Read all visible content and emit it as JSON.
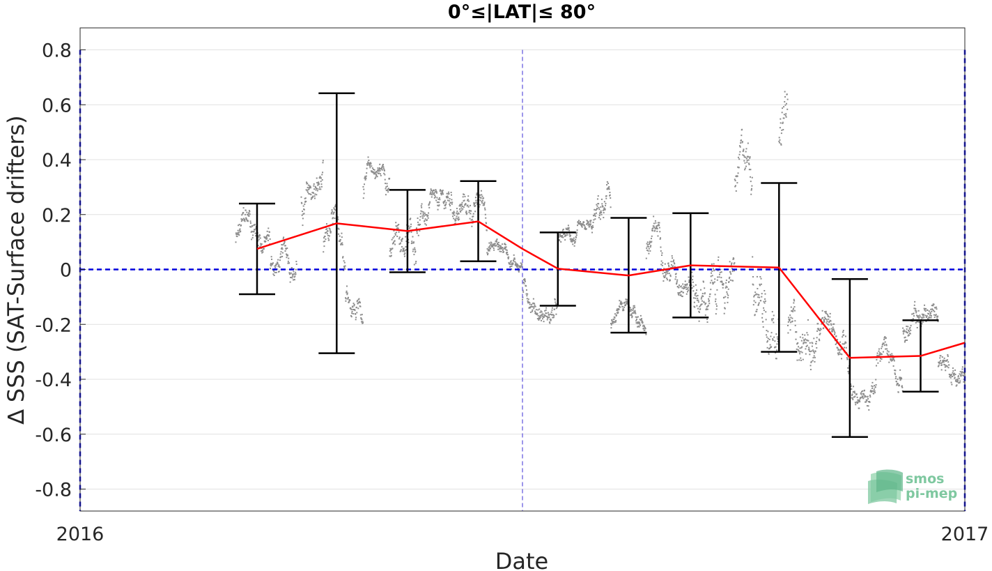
{
  "chart_data": {
    "type": "line",
    "title": "0°≤|LAT|≤ 80°",
    "xlabel": "Date",
    "ylabel": "∆ SSS (SAT-Surface drifters)",
    "x_tick_labels": [
      "2016",
      "2017"
    ],
    "xlim": [
      2016.0,
      2017.0
    ],
    "ylim": [
      -0.88,
      0.88
    ],
    "y_ticks": [
      -0.8,
      -0.6,
      -0.4,
      -0.2,
      0,
      0.2,
      0.4,
      0.6,
      0.8
    ],
    "y_tick_labels": [
      "-0.8",
      "-0.6",
      "-0.4",
      "-0.2",
      "0",
      "0.2",
      "0.4",
      "0.6",
      "0.8"
    ],
    "grid": true,
    "reference_line_y": 0,
    "vertical_marker_x": 2016.5,
    "series": [
      {
        "color": "#ff0000",
        "x": [
          2016.2,
          2016.29,
          2016.37,
          2016.45,
          2016.5,
          2016.54,
          2016.62,
          2016.69,
          2016.79,
          2016.87,
          2016.95,
          2017.0
        ],
        "y": [
          0.075,
          0.168,
          0.14,
          0.175,
          0.075,
          0.003,
          -0.022,
          0.015,
          0.007,
          -0.322,
          -0.315,
          -0.267
        ]
      }
    ],
    "error_bars": [
      {
        "x": 2016.2,
        "low": -0.09,
        "high": 0.24
      },
      {
        "x": 2016.29,
        "low": -0.305,
        "high": 0.642
      },
      {
        "x": 2016.37,
        "low": -0.01,
        "high": 0.29
      },
      {
        "x": 2016.45,
        "low": 0.03,
        "high": 0.322
      },
      {
        "x": 2016.54,
        "low": -0.132,
        "high": 0.135
      },
      {
        "x": 2016.62,
        "low": -0.23,
        "high": 0.188
      },
      {
        "x": 2016.69,
        "low": -0.175,
        "high": 0.205
      },
      {
        "x": 2016.79,
        "low": -0.3,
        "high": 0.315
      },
      {
        "x": 2016.87,
        "low": -0.61,
        "high": -0.035
      },
      {
        "x": 2016.95,
        "low": -0.445,
        "high": -0.185
      }
    ],
    "scatter_segments": [
      {
        "x0": 2016.176,
        "x1": 2016.215,
        "center": 0.1,
        "spread": 0.13
      },
      {
        "x0": 2016.215,
        "x1": 2016.245,
        "center": 0.0,
        "spread": 0.11
      },
      {
        "x0": 2016.25,
        "x1": 2016.275,
        "center": 0.25,
        "spread": 0.14
      },
      {
        "x0": 2016.275,
        "x1": 2016.3,
        "center": 0.08,
        "spread": 0.14
      },
      {
        "x0": 2016.3,
        "x1": 2016.32,
        "center": -0.1,
        "spread": 0.12
      },
      {
        "x0": 2016.32,
        "x1": 2016.35,
        "center": 0.3,
        "spread": 0.1
      },
      {
        "x0": 2016.35,
        "x1": 2016.38,
        "center": 0.05,
        "spread": 0.15
      },
      {
        "x0": 2016.38,
        "x1": 2016.42,
        "center": 0.17,
        "spread": 0.11
      },
      {
        "x0": 2016.42,
        "x1": 2016.46,
        "center": 0.26,
        "spread": 0.12
      },
      {
        "x0": 2016.46,
        "x1": 2016.5,
        "center": 0.06,
        "spread": 0.07
      },
      {
        "x0": 2016.5,
        "x1": 2016.54,
        "center": -0.1,
        "spread": 0.09
      },
      {
        "x0": 2016.54,
        "x1": 2016.58,
        "center": 0.1,
        "spread": 0.07
      },
      {
        "x0": 2016.58,
        "x1": 2016.6,
        "center": 0.18,
        "spread": 0.13
      },
      {
        "x0": 2016.6,
        "x1": 2016.64,
        "center": -0.2,
        "spread": 0.08
      },
      {
        "x0": 2016.64,
        "x1": 2016.69,
        "center": 0.05,
        "spread": 0.13
      },
      {
        "x0": 2016.69,
        "x1": 2016.74,
        "center": -0.05,
        "spread": 0.18
      },
      {
        "x0": 2016.74,
        "x1": 2016.76,
        "center": 0.32,
        "spread": 0.18
      },
      {
        "x0": 2016.76,
        "x1": 2016.79,
        "center": 0.02,
        "spread": 0.3
      },
      {
        "x0": 2016.79,
        "x1": 2016.8,
        "center": 0.45,
        "spread": 0.2
      },
      {
        "x0": 2016.8,
        "x1": 2016.83,
        "center": -0.22,
        "spread": 0.2
      },
      {
        "x0": 2016.83,
        "x1": 2016.87,
        "center": -0.3,
        "spread": 0.14
      },
      {
        "x0": 2016.87,
        "x1": 2016.9,
        "center": -0.42,
        "spread": 0.1
      },
      {
        "x0": 2016.9,
        "x1": 2016.93,
        "center": -0.35,
        "spread": 0.1
      },
      {
        "x0": 2016.93,
        "x1": 2016.97,
        "center": -0.25,
        "spread": 0.12
      },
      {
        "x0": 2016.97,
        "x1": 2017.0,
        "center": -0.33,
        "spread": 0.1
      }
    ],
    "colors": {
      "mean_line": "#ff0000",
      "error_bars": "#000000",
      "scatter": "#8c8c8c",
      "zero_line": "#0000dd",
      "vertical_marker": "#5b4fdc",
      "grid": "#e1e1e1"
    }
  },
  "logo": {
    "line1": "smos",
    "line2": "pi-mep"
  }
}
